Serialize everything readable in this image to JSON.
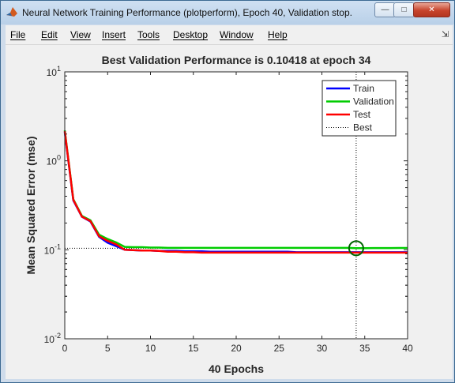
{
  "window": {
    "title": "Neural Network Training Performance (plotperform), Epoch 40, Validation stop."
  },
  "menu": {
    "items": [
      "File",
      "Edit",
      "View",
      "Insert",
      "Tools",
      "Desktop",
      "Window",
      "Help"
    ]
  },
  "chart_data": {
    "type": "line",
    "title": "Best Validation Performance is 0.10418 at epoch 34",
    "xlabel": "40 Epochs",
    "ylabel": "Mean Squared Error  (mse)",
    "xlim": [
      0,
      40
    ],
    "ylim": [
      0.01,
      10
    ],
    "yscale": "log",
    "x_ticks": [
      "0",
      "5",
      "10",
      "15",
      "20",
      "25",
      "30",
      "35",
      "40"
    ],
    "y_ticks": [
      {
        "base": "10",
        "exp": "1"
      },
      {
        "base": "10",
        "exp": "0"
      },
      {
        "base": "10",
        "exp": "-1"
      },
      {
        "base": "10",
        "exp": "-2"
      }
    ],
    "grid": false,
    "legend_position": "top-right",
    "best": {
      "epoch": 34,
      "value": 0.10418,
      "label": "Best"
    },
    "series": [
      {
        "name": "Train",
        "color": "#0000ff",
        "x": [
          0,
          1,
          2,
          3,
          4,
          5,
          6,
          7,
          8,
          9,
          10,
          11,
          12,
          13,
          14,
          15,
          16,
          17,
          18,
          19,
          20,
          21,
          22,
          23,
          24,
          25,
          26,
          27,
          28,
          29,
          30,
          31,
          32,
          33,
          34,
          35,
          36,
          37,
          38,
          39,
          40
        ],
        "values": [
          2.1,
          0.36,
          0.235,
          0.208,
          0.14,
          0.12,
          0.11,
          0.1,
          0.099,
          0.098,
          0.098,
          0.097,
          0.097,
          0.097,
          0.096,
          0.096,
          0.096,
          0.095,
          0.095,
          0.095,
          0.095,
          0.095,
          0.095,
          0.095,
          0.095,
          0.095,
          0.095,
          0.094,
          0.094,
          0.094,
          0.094,
          0.094,
          0.094,
          0.094,
          0.094,
          0.094,
          0.094,
          0.094,
          0.094,
          0.094,
          0.094
        ]
      },
      {
        "name": "Validation",
        "color": "#00cc00",
        "x": [
          0,
          1,
          2,
          3,
          4,
          5,
          6,
          7,
          8,
          9,
          10,
          11,
          12,
          13,
          14,
          15,
          16,
          17,
          18,
          19,
          20,
          21,
          22,
          23,
          24,
          25,
          26,
          27,
          28,
          29,
          30,
          31,
          32,
          33,
          34,
          35,
          36,
          37,
          38,
          39,
          40
        ],
        "values": [
          2.2,
          0.37,
          0.24,
          0.215,
          0.148,
          0.132,
          0.121,
          0.108,
          0.107,
          0.107,
          0.106,
          0.106,
          0.105,
          0.105,
          0.105,
          0.105,
          0.105,
          0.105,
          0.105,
          0.105,
          0.105,
          0.105,
          0.105,
          0.105,
          0.105,
          0.105,
          0.105,
          0.105,
          0.105,
          0.105,
          0.105,
          0.105,
          0.105,
          0.105,
          0.10418,
          0.1045,
          0.1046,
          0.1047,
          0.1047,
          0.1048,
          0.1048
        ]
      },
      {
        "name": "Test",
        "color": "#ff0000",
        "x": [
          0,
          1,
          2,
          3,
          4,
          5,
          6,
          7,
          8,
          9,
          10,
          11,
          12,
          13,
          14,
          15,
          16,
          17,
          18,
          19,
          20,
          21,
          22,
          23,
          24,
          25,
          26,
          27,
          28,
          29,
          30,
          31,
          32,
          33,
          34,
          35,
          36,
          37,
          38,
          39,
          40
        ],
        "values": [
          2.15,
          0.365,
          0.236,
          0.21,
          0.142,
          0.126,
          0.115,
          0.1,
          0.099,
          0.098,
          0.098,
          0.097,
          0.095,
          0.095,
          0.094,
          0.094,
          0.093,
          0.093,
          0.093,
          0.093,
          0.093,
          0.093,
          0.093,
          0.093,
          0.093,
          0.093,
          0.093,
          0.093,
          0.093,
          0.093,
          0.093,
          0.093,
          0.093,
          0.093,
          0.093,
          0.093,
          0.093,
          0.093,
          0.093,
          0.093,
          0.093
        ]
      }
    ]
  }
}
